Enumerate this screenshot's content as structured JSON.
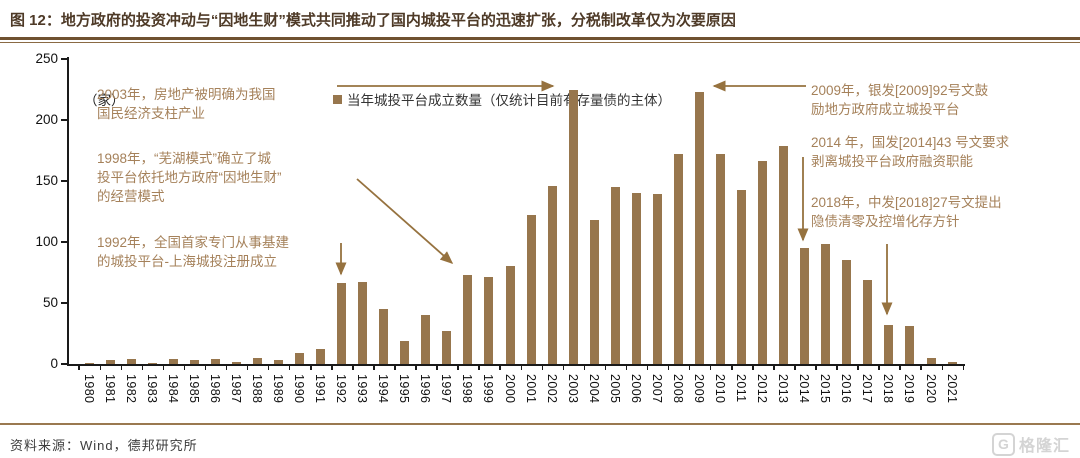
{
  "header": {
    "figure_label": "图 12：",
    "title": "地方政府的投资冲动与“因地生财”模式共同推动了国内城投平台的迅速扩张，分税制改革仅为次要原因"
  },
  "chart_data": {
    "type": "bar",
    "unit_label": "（家）",
    "legend": "当年城投平台成立数量（仅统计目前有存量债的主体）",
    "bar_color": "#97764d",
    "arrow_color": "#96723f",
    "annotation_color": "#a5815a",
    "ylim": [
      0,
      250
    ],
    "yticks": [
      0,
      50,
      100,
      150,
      200,
      250
    ],
    "grid": false,
    "legend_position": "top",
    "categories": [
      1980,
      1981,
      1982,
      1983,
      1984,
      1985,
      1986,
      1987,
      1988,
      1989,
      1990,
      1991,
      1992,
      1993,
      1994,
      1995,
      1996,
      1997,
      1998,
      1999,
      2000,
      2001,
      2002,
      2003,
      2004,
      2005,
      2006,
      2007,
      2008,
      2009,
      2010,
      2011,
      2012,
      2013,
      2014,
      2015,
      2016,
      2017,
      2018,
      2019,
      2020,
      2021
    ],
    "values": [
      1,
      3,
      4,
      1,
      4,
      3,
      4,
      2,
      5,
      3,
      9,
      12,
      66,
      67,
      45,
      19,
      40,
      27,
      73,
      71,
      80,
      122,
      146,
      225,
      118,
      145,
      140,
      139,
      172,
      223,
      172,
      143,
      166,
      179,
      95,
      98,
      85,
      69,
      32,
      31,
      5,
      2
    ],
    "annotations": [
      {
        "id": "ann-2003",
        "target_year": 2003,
        "text": "2003年，房地产被明确为我国\n国民经济支柱产业"
      },
      {
        "id": "ann-1998",
        "target_year": 1998,
        "text": "1998年，“芜湖模式”确立了城\n投平台依托地方政府“因地生财”\n的经营模式"
      },
      {
        "id": "ann-1992",
        "target_year": 1992,
        "text": "1992年，全国首家专门从事基建\n的城投平台-上海城投注册成立"
      },
      {
        "id": "ann-2009",
        "target_year": 2009,
        "text": "2009年，银发[2009]92号文鼓\n励地方政府成立城投平台"
      },
      {
        "id": "ann-2014",
        "target_year": 2014,
        "text": "2014 年，国发[2014]43 号文要求\n剥离城投平台政府融资职能"
      },
      {
        "id": "ann-2018",
        "target_year": 2018,
        "text": "2018年，中发[2018]27号文提出\n隐债清零及控增化存方针"
      }
    ]
  },
  "footer": {
    "source": "资料来源：Wind，德邦研究所",
    "watermark_letter": "G",
    "watermark": "格隆汇"
  }
}
